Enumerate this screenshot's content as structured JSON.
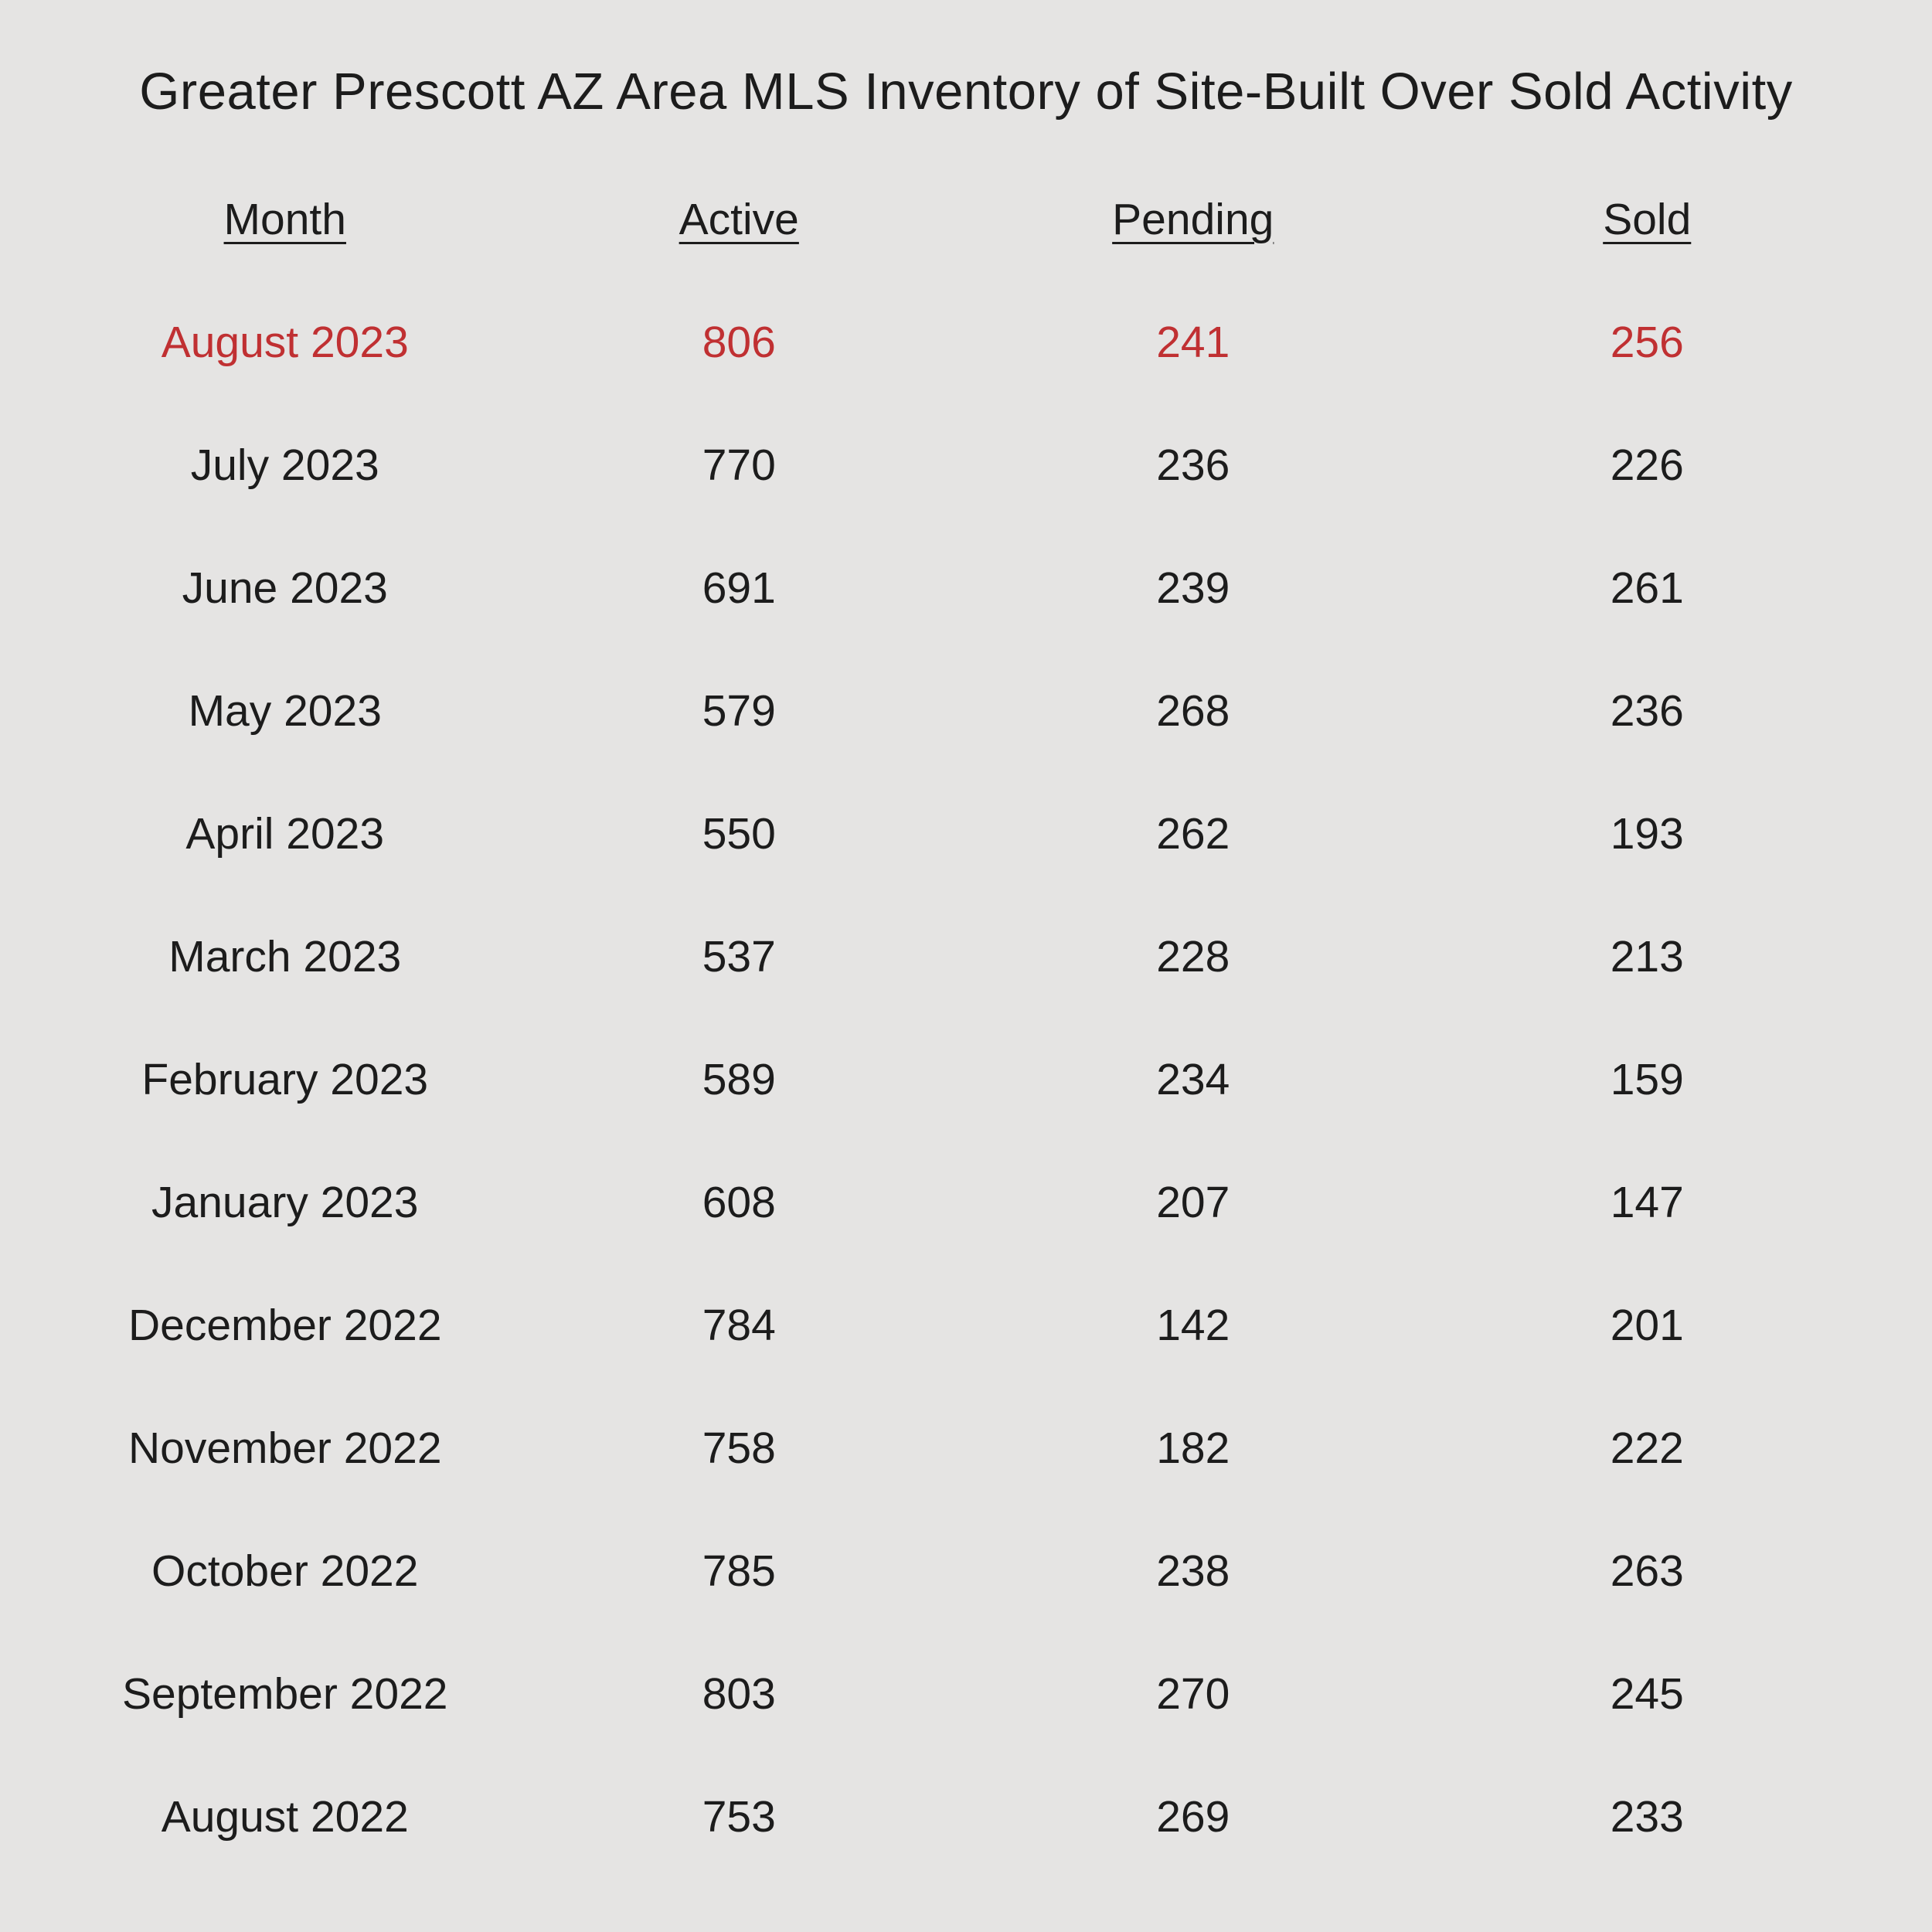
{
  "title": "Greater Prescott AZ Area MLS Inventory of Site-Built Over Sold Activity",
  "colors": {
    "background": "#e5e4e3",
    "text": "#1c1c1c",
    "highlight_text": "#c03032"
  },
  "chart_data": {
    "type": "table",
    "title": "Greater Prescott AZ Area MLS Inventory of Site-Built Over Sold Activity",
    "columns": [
      "Month",
      "Active",
      "Pending",
      "Sold"
    ],
    "highlighted_row": "August 2023",
    "highlight_color": "#c03032",
    "grid": false,
    "rows": [
      {
        "month": "August 2023",
        "active": 806,
        "pending": 241,
        "sold": 256,
        "highlighted": true
      },
      {
        "month": "July 2023",
        "active": 770,
        "pending": 236,
        "sold": 226,
        "highlighted": false
      },
      {
        "month": "June 2023",
        "active": 691,
        "pending": 239,
        "sold": 261,
        "highlighted": false
      },
      {
        "month": "May 2023",
        "active": 579,
        "pending": 268,
        "sold": 236,
        "highlighted": false
      },
      {
        "month": "April 2023",
        "active": 550,
        "pending": 262,
        "sold": 193,
        "highlighted": false
      },
      {
        "month": "March 2023",
        "active": 537,
        "pending": 228,
        "sold": 213,
        "highlighted": false
      },
      {
        "month": "February 2023",
        "active": 589,
        "pending": 234,
        "sold": 159,
        "highlighted": false
      },
      {
        "month": "January 2023",
        "active": 608,
        "pending": 207,
        "sold": 147,
        "highlighted": false
      },
      {
        "month": "December 2022",
        "active": 784,
        "pending": 142,
        "sold": 201,
        "highlighted": false
      },
      {
        "month": "November 2022",
        "active": 758,
        "pending": 182,
        "sold": 222,
        "highlighted": false
      },
      {
        "month": "October 2022",
        "active": 785,
        "pending": 238,
        "sold": 263,
        "highlighted": false
      },
      {
        "month": "September 2022",
        "active": 803,
        "pending": 270,
        "sold": 245,
        "highlighted": false
      },
      {
        "month": "August 2022",
        "active": 753,
        "pending": 269,
        "sold": 233,
        "highlighted": false
      }
    ]
  }
}
